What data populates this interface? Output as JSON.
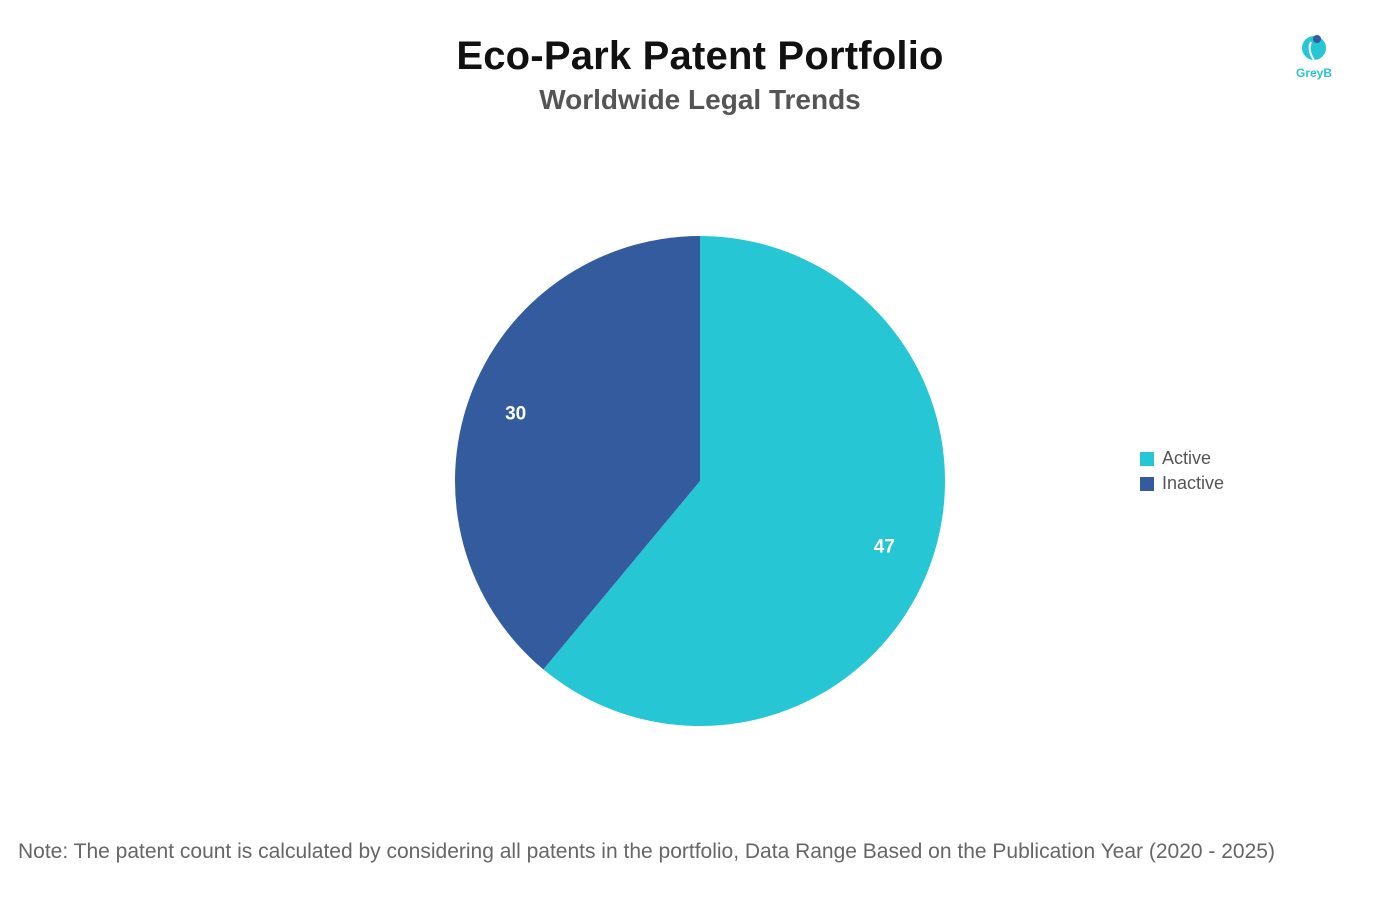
{
  "header": {
    "title": "Eco-Park Patent Portfolio",
    "subtitle": "Worldwide Legal Trends"
  },
  "logo": {
    "icon": "greyb-logo-icon",
    "text": "GreyB",
    "color": "#26c6d4"
  },
  "chart_data": {
    "type": "pie",
    "title": "Eco-Park Patent Portfolio",
    "subtitle": "Worldwide Legal Trends",
    "categories": [
      "Active",
      "Inactive"
    ],
    "values": [
      47,
      30
    ],
    "colors": [
      "#26c6d4",
      "#335b9e"
    ],
    "data_labels": [
      "47",
      "30"
    ],
    "legend_position": "right",
    "start_angle": "top, clockwise"
  },
  "legend": {
    "items": [
      {
        "label": "Active",
        "color": "#26c6d4"
      },
      {
        "label": "Inactive",
        "color": "#335b9e"
      }
    ]
  },
  "footer": {
    "note": "Note: The patent count is calculated by considering all patents in the portfolio, Data Range Based on the Publication Year (2020 - 2025)"
  }
}
